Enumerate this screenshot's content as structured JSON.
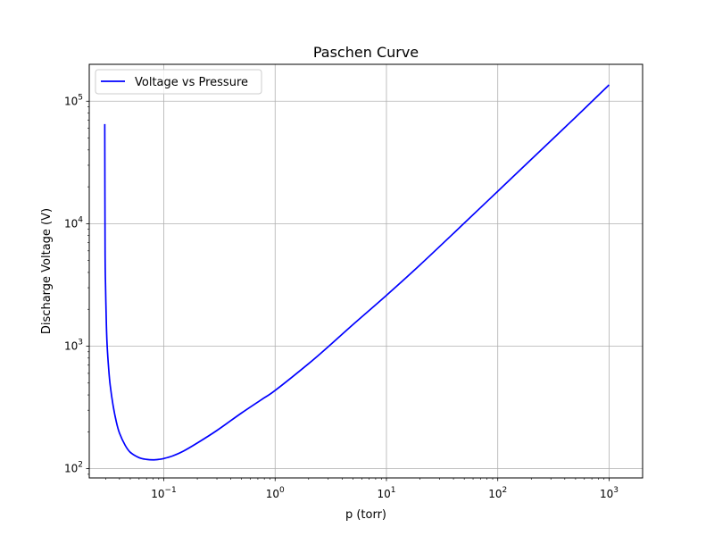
{
  "chart_data": {
    "type": "line",
    "title": "Paschen Curve",
    "xlabel": "p (torr)",
    "ylabel": "Discharge Voltage (V)",
    "xscale": "log",
    "yscale": "log",
    "xlim": [
      0.0214,
      2000
    ],
    "ylim": [
      84,
      200000
    ],
    "grid": true,
    "legend_position": "top-left",
    "x_major_ticks": [
      {
        "value": 0.1,
        "base": "10",
        "exp": "−1"
      },
      {
        "value": 1,
        "base": "10",
        "exp": "0"
      },
      {
        "value": 10,
        "base": "10",
        "exp": "1"
      },
      {
        "value": 100,
        "base": "10",
        "exp": "2"
      },
      {
        "value": 1000,
        "base": "10",
        "exp": "3"
      }
    ],
    "y_major_ticks": [
      {
        "value": 100,
        "base": "10",
        "exp": "2"
      },
      {
        "value": 1000,
        "base": "10",
        "exp": "3"
      },
      {
        "value": 10000,
        "base": "10",
        "exp": "4"
      },
      {
        "value": 100000,
        "base": "10",
        "exp": "5"
      }
    ],
    "series": [
      {
        "name": "Voltage vs Pressure",
        "color": "#0000ff",
        "x": [
          0.0295,
          0.0297,
          0.03,
          0.0305,
          0.031,
          0.032,
          0.033,
          0.035,
          0.0375,
          0.04,
          0.045,
          0.05,
          0.06,
          0.07,
          0.08,
          0.09,
          0.1,
          0.12,
          0.15,
          0.2,
          0.3,
          0.5,
          0.75,
          1,
          2,
          3,
          5,
          10,
          20,
          50,
          100,
          200,
          500,
          1000
        ],
        "y": [
          65000,
          6000,
          3000,
          1500,
          1000,
          650,
          480,
          330,
          240,
          195,
          155,
          136,
          123,
          119,
          118,
          119,
          121,
          127,
          139,
          162,
          205,
          285,
          365,
          435,
          720,
          990,
          1500,
          2600,
          4600,
          10100,
          18400,
          33500,
          74000,
          136000
        ]
      }
    ]
  }
}
